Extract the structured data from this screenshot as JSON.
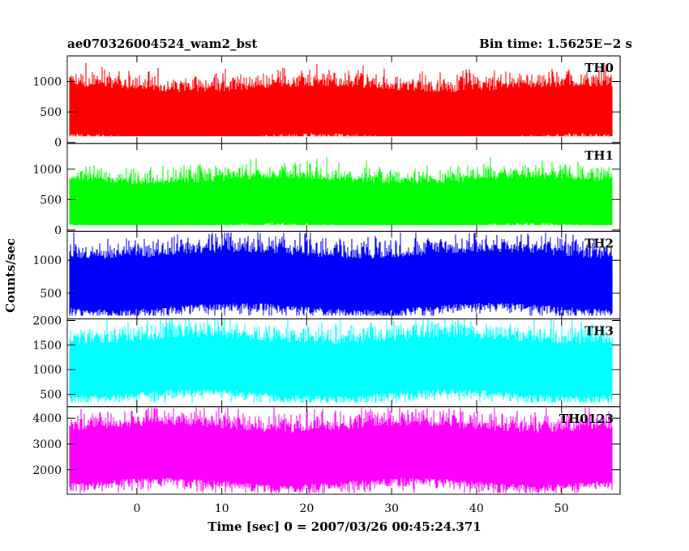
{
  "header": {
    "left_title": "ae070326004524_wam2_bst",
    "right_title": "Bin time: 1.5625E−2 s"
  },
  "axes": {
    "xlabel": "Time [sec] 0 = 2007/03/26 00:45:24.371",
    "ylabel": "Counts/sec"
  },
  "chart_data": {
    "type": "line",
    "title": "ae070326004524_wam2_bst",
    "subtitle": "Bin time: 1.5625E−2 s",
    "xlabel": "Time [sec] 0 = 2007/03/26 00:45:24.371",
    "ylabel": "Counts/sec",
    "xlim": [
      -8.2,
      56.9
    ],
    "x_data_range": [
      -8.0,
      56.0
    ],
    "x_ticks": [
      0,
      10,
      20,
      30,
      40,
      50
    ],
    "grid": false,
    "panels": [
      {
        "name": "TH0",
        "color": "#ff0000",
        "ylim": [
          -20,
          1420
        ],
        "y_ticks": [
          0,
          500,
          1000
        ],
        "approx_mean": 520,
        "approx_low": 100,
        "approx_high": 1350
      },
      {
        "name": "TH1",
        "color": "#00ff00",
        "ylim": [
          -20,
          1420
        ],
        "y_ticks": [
          0,
          500,
          1000
        ],
        "approx_mean": 470,
        "approx_low": 80,
        "approx_high": 1250
      },
      {
        "name": "TH2",
        "color": "#0000ff",
        "ylim": [
          110,
          1440
        ],
        "y_ticks": [
          500,
          1000
        ],
        "approx_mean": 720,
        "approx_low": 160,
        "approx_high": 1420
      },
      {
        "name": "TH3",
        "color": "#00ffff",
        "ylim": [
          250,
          2030
        ],
        "y_ticks": [
          500,
          1000,
          1500,
          2000
        ],
        "approx_mean": 1100,
        "approx_low": 330,
        "approx_high": 2030
      },
      {
        "name": "TH0123",
        "color": "#ff00ff",
        "ylim": [
          1050,
          4450
        ],
        "y_ticks": [
          2000,
          3000,
          4000
        ],
        "approx_mean": 2650,
        "approx_low": 1100,
        "approx_high": 4400
      }
    ]
  }
}
